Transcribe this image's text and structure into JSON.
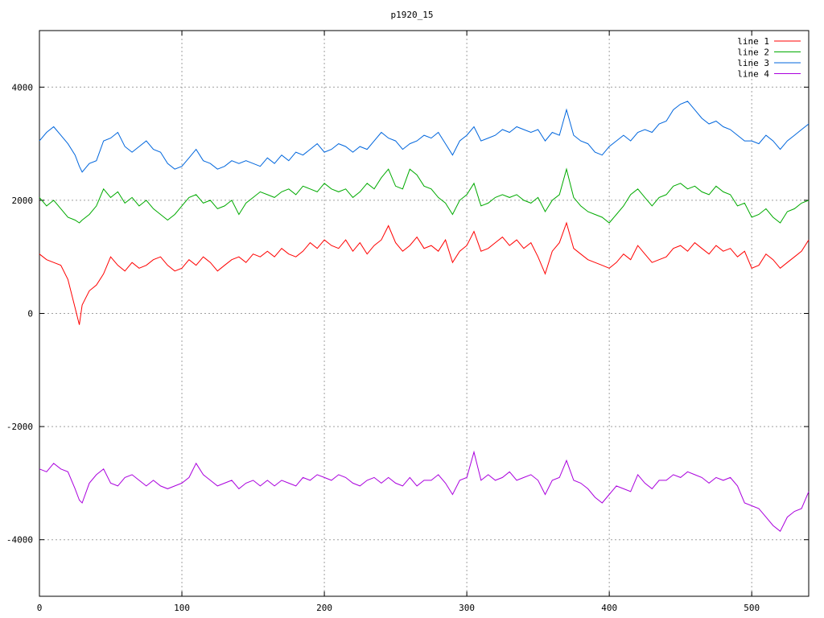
{
  "chart_data": {
    "type": "line",
    "title": "p1920_15",
    "xlabel": "",
    "ylabel": "",
    "xlim": [
      0,
      540
    ],
    "ylim": [
      -5000,
      5000
    ],
    "xticks": [
      0,
      100,
      200,
      300,
      400,
      500
    ],
    "yticks": [
      -4000,
      -2000,
      0,
      2000,
      4000
    ],
    "grid": true,
    "legend_position": "top-right",
    "x": [
      0,
      5,
      10,
      15,
      20,
      25,
      28,
      30,
      35,
      40,
      45,
      50,
      55,
      60,
      65,
      70,
      75,
      80,
      85,
      90,
      95,
      100,
      105,
      110,
      115,
      120,
      125,
      130,
      135,
      140,
      145,
      150,
      155,
      160,
      165,
      170,
      175,
      180,
      185,
      190,
      195,
      200,
      205,
      210,
      215,
      220,
      225,
      230,
      235,
      240,
      245,
      250,
      255,
      260,
      265,
      270,
      275,
      280,
      285,
      290,
      295,
      300,
      305,
      310,
      315,
      320,
      325,
      330,
      335,
      340,
      345,
      350,
      355,
      360,
      365,
      370,
      375,
      380,
      385,
      390,
      395,
      400,
      405,
      410,
      415,
      420,
      425,
      430,
      435,
      440,
      445,
      450,
      455,
      460,
      465,
      470,
      475,
      480,
      485,
      490,
      495,
      500,
      505,
      510,
      515,
      520,
      525,
      530,
      535,
      540
    ],
    "series": [
      {
        "name": "line 1",
        "color": "#ff0000",
        "values": [
          1050,
          950,
          900,
          850,
          600,
          100,
          -200,
          150,
          400,
          500,
          700,
          1000,
          850,
          750,
          900,
          800,
          850,
          950,
          1000,
          850,
          750,
          800,
          950,
          850,
          1000,
          900,
          750,
          850,
          950,
          1000,
          900,
          1050,
          1000,
          1100,
          1000,
          1150,
          1050,
          1000,
          1100,
          1250,
          1150,
          1300,
          1200,
          1150,
          1300,
          1100,
          1250,
          1050,
          1200,
          1300,
          1550,
          1250,
          1100,
          1200,
          1350,
          1150,
          1200,
          1100,
          1300,
          900,
          1100,
          1200,
          1450,
          1100,
          1150,
          1250,
          1350,
          1200,
          1300,
          1150,
          1250,
          1000,
          700,
          1100,
          1250,
          1600,
          1150,
          1050,
          950,
          900,
          850,
          800,
          900,
          1050,
          950,
          1200,
          1050,
          900,
          950,
          1000,
          1150,
          1200,
          1100,
          1250,
          1150,
          1050,
          1200,
          1100,
          1150,
          1000,
          1100,
          800,
          850,
          1050,
          950,
          800,
          900,
          1000,
          1100,
          1300
        ]
      },
      {
        "name": "line 2",
        "color": "#00aa00",
        "values": [
          2050,
          1900,
          2000,
          1850,
          1700,
          1650,
          1600,
          1650,
          1750,
          1900,
          2200,
          2050,
          2150,
          1950,
          2050,
          1900,
          2000,
          1850,
          1750,
          1650,
          1750,
          1900,
          2050,
          2100,
          1950,
          2000,
          1850,
          1900,
          2000,
          1750,
          1950,
          2050,
          2150,
          2100,
          2050,
          2150,
          2200,
          2100,
          2250,
          2200,
          2150,
          2300,
          2200,
          2150,
          2200,
          2050,
          2150,
          2300,
          2200,
          2400,
          2550,
          2250,
          2200,
          2550,
          2450,
          2250,
          2200,
          2050,
          1950,
          1750,
          2000,
          2100,
          2300,
          1900,
          1950,
          2050,
          2100,
          2050,
          2100,
          2000,
          1950,
          2050,
          1800,
          2000,
          2100,
          2550,
          2050,
          1900,
          1800,
          1750,
          1700,
          1600,
          1750,
          1900,
          2100,
          2200,
          2050,
          1900,
          2050,
          2100,
          2250,
          2300,
          2200,
          2250,
          2150,
          2100,
          2250,
          2150,
          2100,
          1900,
          1950,
          1700,
          1750,
          1850,
          1700,
          1600,
          1800,
          1850,
          1950,
          2000
        ]
      },
      {
        "name": "line 3",
        "color": "#0066dd",
        "values": [
          3050,
          3200,
          3300,
          3150,
          3000,
          2800,
          2600,
          2500,
          2650,
          2700,
          3050,
          3100,
          3200,
          2950,
          2850,
          2950,
          3050,
          2900,
          2850,
          2650,
          2550,
          2600,
          2750,
          2900,
          2700,
          2650,
          2550,
          2600,
          2700,
          2650,
          2700,
          2650,
          2600,
          2750,
          2650,
          2800,
          2700,
          2850,
          2800,
          2900,
          3000,
          2850,
          2900,
          3000,
          2950,
          2850,
          2950,
          2900,
          3050,
          3200,
          3100,
          3050,
          2900,
          3000,
          3050,
          3150,
          3100,
          3200,
          3000,
          2800,
          3050,
          3150,
          3300,
          3050,
          3100,
          3150,
          3250,
          3200,
          3300,
          3250,
          3200,
          3250,
          3050,
          3200,
          3150,
          3600,
          3150,
          3050,
          3000,
          2850,
          2800,
          2950,
          3050,
          3150,
          3050,
          3200,
          3250,
          3200,
          3350,
          3400,
          3600,
          3700,
          3750,
          3600,
          3450,
          3350,
          3400,
          3300,
          3250,
          3150,
          3050,
          3050,
          3000,
          3150,
          3050,
          2900,
          3050,
          3150,
          3250,
          3350
        ]
      },
      {
        "name": "line 4",
        "color": "#aa00dd",
        "values": [
          -2750,
          -2800,
          -2650,
          -2750,
          -2800,
          -3100,
          -3300,
          -3350,
          -3000,
          -2850,
          -2750,
          -3000,
          -3050,
          -2900,
          -2850,
          -2950,
          -3050,
          -2950,
          -3050,
          -3100,
          -3050,
          -3000,
          -2900,
          -2650,
          -2850,
          -2950,
          -3050,
          -3000,
          -2950,
          -3100,
          -3000,
          -2950,
          -3050,
          -2950,
          -3050,
          -2950,
          -3000,
          -3050,
          -2900,
          -2950,
          -2850,
          -2900,
          -2950,
          -2850,
          -2900,
          -3000,
          -3050,
          -2950,
          -2900,
          -3000,
          -2900,
          -3000,
          -3050,
          -2900,
          -3050,
          -2950,
          -2950,
          -2850,
          -3000,
          -3200,
          -2950,
          -2900,
          -2450,
          -2950,
          -2850,
          -2950,
          -2900,
          -2800,
          -2950,
          -2900,
          -2850,
          -2950,
          -3200,
          -2950,
          -2900,
          -2600,
          -2950,
          -3000,
          -3100,
          -3250,
          -3350,
          -3200,
          -3050,
          -3100,
          -3150,
          -2850,
          -3000,
          -3100,
          -2950,
          -2950,
          -2850,
          -2900,
          -2800,
          -2850,
          -2900,
          -3000,
          -2900,
          -2950,
          -2900,
          -3050,
          -3350,
          -3400,
          -3450,
          -3600,
          -3750,
          -3850,
          -3600,
          -3500,
          -3450,
          -3150
        ]
      }
    ]
  }
}
